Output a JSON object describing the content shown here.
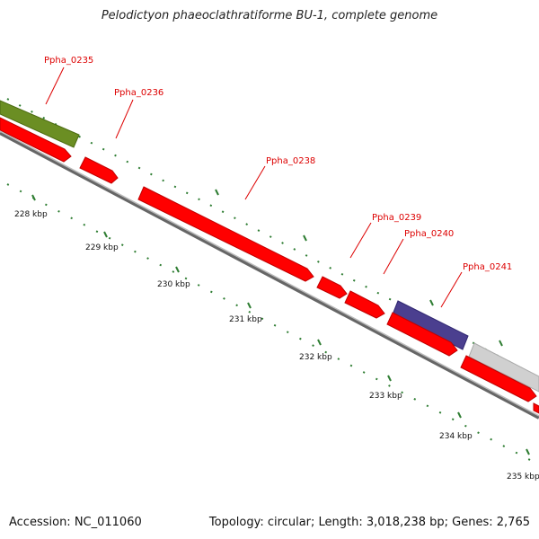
{
  "title": "Pelodictyon phaeoclathratiforme BU-1, complete genome",
  "accession": "Accession: NC_011060",
  "summary": "Topology: circular; Length: 3,018,238 bp; Genes: 2,765",
  "colors": {
    "gene_red": "#ff0000",
    "gene_green": "#6b8e23",
    "gene_blue": "#4b3f8f",
    "gene_gray": "#cccccc",
    "backbone": "#888888",
    "tick": "#2e7d32",
    "label_red": "#dd0000"
  },
  "scale_ticks": [
    "228 kbp",
    "229 kbp",
    "230 kbp",
    "231 kbp",
    "232 kbp",
    "233 kbp",
    "234 kbp",
    "235 kbp"
  ],
  "gene_labels": [
    "Ppha_0235",
    "Ppha_0236",
    "Ppha_0238",
    "Ppha_0239",
    "Ppha_0240",
    "Ppha_0241"
  ]
}
